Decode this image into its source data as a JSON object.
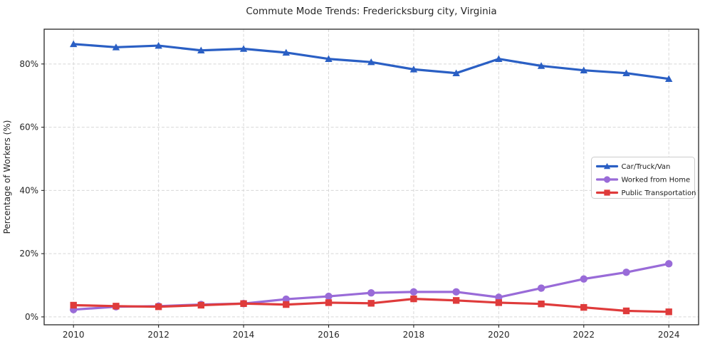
{
  "chart_data": {
    "type": "line",
    "title": "Commute Mode Trends: Fredericksburg city, Virginia",
    "ylabel": "Percentage of Workers (%)",
    "xlabel": "",
    "x": [
      2010,
      2011,
      2012,
      2013,
      2014,
      2015,
      2016,
      2017,
      2018,
      2019,
      2020,
      2021,
      2022,
      2023,
      2024
    ],
    "x_ticks": [
      2010,
      2012,
      2014,
      2016,
      2018,
      2020,
      2022,
      2024
    ],
    "x_tick_labels": [
      "2010",
      "2012",
      "2014",
      "2016",
      "2018",
      "2020",
      "2022",
      "2024"
    ],
    "y_ticks": [
      0,
      20,
      40,
      60,
      80
    ],
    "y_tick_labels": [
      "0%",
      "20%",
      "40%",
      "60%",
      "80%"
    ],
    "xlim": [
      2009.31,
      2024.7
    ],
    "ylim": [
      -2.5,
      91.0
    ],
    "grid": true,
    "background": "#ffffff",
    "axis_color": "#262626",
    "grid_color": "#d8d8d8",
    "legend": {
      "position": "center-right",
      "border_color": "#cccccc",
      "background": "#ffffff"
    },
    "series": [
      {
        "name": "Car/Truck/Van",
        "marker": "triangle",
        "color": "#2a5fc4",
        "values": [
          86.3,
          85.3,
          85.8,
          84.3,
          84.8,
          83.6,
          81.6,
          80.6,
          78.3,
          77.1,
          81.6,
          79.4,
          78.0,
          77.1,
          75.3
        ]
      },
      {
        "name": "Worked from Home",
        "marker": "circle",
        "color": "#996bd8",
        "values": [
          2.3,
          3.2,
          3.4,
          3.9,
          4.2,
          5.6,
          6.5,
          7.6,
          7.9,
          7.9,
          6.2,
          9.1,
          12.0,
          14.1,
          16.8
        ]
      },
      {
        "name": "Public Transportation",
        "marker": "square",
        "color": "#df3b3b",
        "values": [
          3.7,
          3.4,
          3.2,
          3.7,
          4.2,
          3.9,
          4.5,
          4.3,
          5.7,
          5.2,
          4.5,
          4.1,
          3.0,
          1.9,
          1.6
        ]
      }
    ]
  }
}
